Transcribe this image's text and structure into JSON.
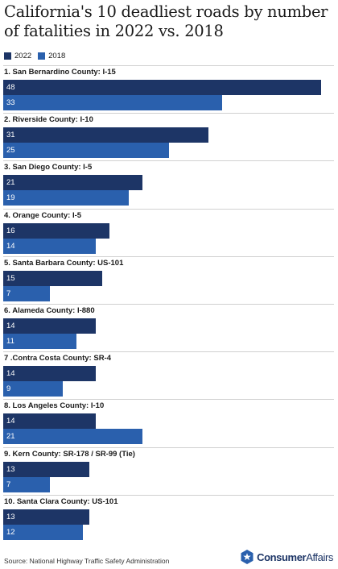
{
  "chart_data": {
    "type": "bar",
    "orientation": "horizontal",
    "title": "California's 10 deadliest roads by number of fatalities in 2022 vs. 2018",
    "categories": [
      "1. San Bernardino County: I-15",
      "2. Riverside County: I-10",
      "3. San Diego County: I-5",
      "4. Orange County: I-5",
      "5. Santa Barbara County: US-101",
      "6. Alameda County: I-880",
      "7 .Contra Costa County: SR-4",
      "8. Los Angeles County: I-10",
      "9. Kern County: SR-178 / SR-99 (Tie)",
      "10. Santa Clara County: US-101"
    ],
    "series": [
      {
        "name": "2022",
        "color": "#1d3566",
        "values": [
          48,
          31,
          21,
          16,
          15,
          14,
          14,
          14,
          13,
          13
        ]
      },
      {
        "name": "2018",
        "color": "#2a60ad",
        "values": [
          33,
          25,
          19,
          14,
          7,
          11,
          9,
          21,
          7,
          12
        ]
      }
    ],
    "xlim": [
      0,
      48
    ],
    "legend_position": "top-left",
    "grid": false,
    "source": "Source: National Highway Traffic Safety Administration"
  },
  "brand": {
    "logo_bold": "Consumer",
    "logo_light": "Affairs",
    "logo_icon": "star-badge-icon"
  }
}
